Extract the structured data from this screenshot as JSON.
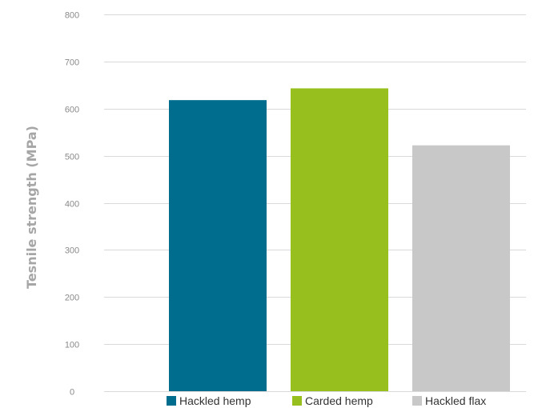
{
  "chart_data": {
    "type": "bar",
    "title": "",
    "xlabel": "",
    "ylabel": "Tesnile strength (MPa)",
    "ylim": [
      0,
      800
    ],
    "yticks": [
      0,
      100,
      200,
      300,
      400,
      500,
      600,
      700,
      800
    ],
    "grid": true,
    "legend_position": "bottom",
    "categories": [
      "Hackled hemp",
      "Carded hemp",
      "Hackled flax"
    ],
    "values": [
      618,
      643,
      522
    ],
    "colors": [
      "#006d8f",
      "#97bf1d",
      "#c8c8c8"
    ]
  }
}
